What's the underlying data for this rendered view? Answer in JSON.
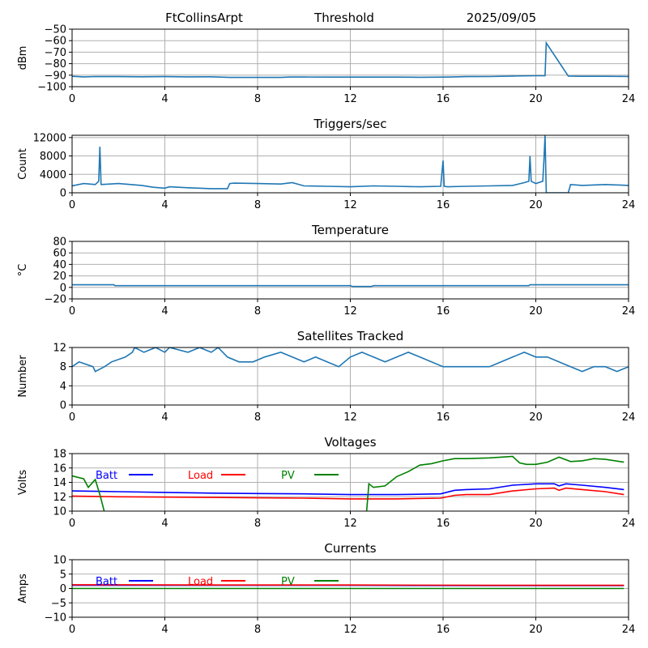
{
  "header": {
    "station": "FtCollinsArpt",
    "product": "Threshold",
    "date": "2025/09/05"
  },
  "colors": {
    "trace": "#1f77b4",
    "batt": "#0000ff",
    "load": "#ff0000",
    "pv": "#008000",
    "grid": "#b0b0b0"
  },
  "chart_data": [
    {
      "id": "threshold",
      "type": "line",
      "title": "",
      "ylabel": "dBm",
      "xlim": [
        0,
        24
      ],
      "xticks": [
        0,
        4,
        8,
        12,
        16,
        20,
        24
      ],
      "ylim": [
        -100,
        -50
      ],
      "yticks": [
        -100,
        -90,
        -80,
        -70,
        -60,
        -50
      ],
      "grid": true,
      "series": [
        {
          "color": "#1f77b4",
          "x": [
            0,
            0.5,
            1,
            2,
            3,
            4,
            5,
            6,
            6.8,
            7,
            8,
            9,
            9.4,
            10,
            11,
            12,
            13,
            14,
            15,
            16,
            16.5,
            17,
            18,
            19,
            20,
            20.4,
            20.45,
            21.4,
            22,
            23,
            24
          ],
          "y": [
            -91,
            -91.5,
            -91.2,
            -91.3,
            -91.4,
            -91.3,
            -91.5,
            -91.4,
            -92,
            -92,
            -92,
            -92,
            -91.6,
            -91.6,
            -91.7,
            -91.7,
            -91.7,
            -91.7,
            -91.8,
            -91.7,
            -91.5,
            -91.3,
            -91.2,
            -90.8,
            -90.5,
            -90.4,
            -62,
            -90.8,
            -91,
            -91,
            -91.2
          ]
        }
      ]
    },
    {
      "id": "triggers",
      "type": "line",
      "title": "Triggers/sec",
      "ylabel": "Count",
      "xlim": [
        0,
        24
      ],
      "xticks": [
        0,
        4,
        8,
        12,
        16,
        20,
        24
      ],
      "ylim": [
        0,
        12500
      ],
      "yticks": [
        0,
        4000,
        8000,
        12000
      ],
      "grid": true,
      "series": [
        {
          "color": "#1f77b4",
          "x": [
            0,
            0.5,
            1,
            1.15,
            1.2,
            1.25,
            2,
            3,
            3.5,
            4,
            4.2,
            5,
            6,
            6.7,
            6.8,
            7,
            8,
            9,
            9.5,
            10,
            11,
            12,
            13,
            14,
            15,
            15.9,
            16,
            16.05,
            16.2,
            17,
            18,
            19,
            19.5,
            19.7,
            19.75,
            19.8,
            20,
            20.3,
            20.35,
            20.4,
            20.45,
            21,
            21.4,
            21.5,
            22,
            23,
            24
          ],
          "y": [
            1500,
            2000,
            1800,
            2500,
            10000,
            1800,
            2000,
            1600,
            1200,
            1000,
            1300,
            1100,
            900,
            900,
            2000,
            2100,
            2000,
            1900,
            2200,
            1500,
            1400,
            1300,
            1500,
            1400,
            1300,
            1400,
            7000,
            1400,
            1300,
            1400,
            1500,
            1600,
            2200,
            2500,
            8000,
            2500,
            2000,
            2500,
            7000,
            12500,
            0,
            0,
            0,
            1800,
            1600,
            1800,
            1600
          ]
        }
      ]
    },
    {
      "id": "temperature",
      "type": "line",
      "title": "Temperature",
      "ylabel": "°C",
      "xlim": [
        0,
        24
      ],
      "xticks": [
        0,
        4,
        8,
        12,
        16,
        20,
        24
      ],
      "ylim": [
        -20,
        80
      ],
      "yticks": [
        -20,
        0,
        20,
        40,
        60,
        80
      ],
      "grid": true,
      "series": [
        {
          "color": "#1f77b4",
          "x": [
            0,
            1.8,
            1.85,
            12,
            12.1,
            12.9,
            13,
            19.7,
            19.75,
            24
          ],
          "y": [
            4.5,
            4.5,
            3,
            3,
            1.5,
            1.5,
            3,
            3,
            4.5,
            4.5
          ]
        }
      ]
    },
    {
      "id": "satellites",
      "type": "line",
      "title": "Satellites Tracked",
      "ylabel": "Number",
      "xlim": [
        0,
        24
      ],
      "xticks": [
        0,
        4,
        8,
        12,
        16,
        20,
        24
      ],
      "ylim": [
        0,
        12
      ],
      "yticks": [
        0,
        4,
        8,
        12
      ],
      "grid": true,
      "series": [
        {
          "color": "#1f77b4",
          "x": [
            0,
            0.3,
            0.9,
            1,
            1.4,
            1.7,
            2.3,
            2.6,
            2.7,
            3.1,
            3.6,
            4,
            4.2,
            5,
            5.5,
            6,
            6.3,
            6.7,
            7.2,
            7.8,
            8.3,
            9,
            9.5,
            10,
            10.5,
            11,
            11.5,
            12,
            12.5,
            13,
            13.5,
            14,
            14.5,
            15,
            15.5,
            16,
            17,
            18,
            18.5,
            19,
            19.5,
            20,
            20.5,
            21,
            21.5,
            22,
            22.5,
            23,
            23.5,
            24
          ],
          "y": [
            8,
            9,
            8,
            7,
            8,
            9,
            10,
            11,
            12,
            11,
            12,
            11,
            12,
            11,
            12,
            11,
            12,
            10,
            9,
            9,
            10,
            11,
            10,
            9,
            10,
            9,
            8,
            10,
            11,
            10,
            9,
            10,
            11,
            10,
            9,
            8,
            8,
            8,
            9,
            10,
            11,
            10,
            10,
            9,
            8,
            7,
            8,
            8,
            7,
            8
          ]
        }
      ]
    },
    {
      "id": "voltages",
      "type": "line",
      "title": "Voltages",
      "ylabel": "Volts",
      "xlim": [
        0,
        24
      ],
      "xticks": [
        0,
        4,
        8,
        12,
        16,
        20,
        24
      ],
      "ylim": [
        10,
        18
      ],
      "yticks": [
        10,
        12,
        14,
        16,
        18
      ],
      "grid": true,
      "legend": [
        "Batt",
        "Load",
        "PV"
      ],
      "legend_placement": "top-left",
      "series": [
        {
          "name": "Batt",
          "color": "#0000ff",
          "x": [
            0,
            2,
            4,
            6,
            8,
            10,
            12,
            14,
            15.9,
            16.5,
            17,
            18,
            19,
            20,
            20.8,
            21,
            21.3,
            22,
            23,
            23.8
          ],
          "y": [
            12.8,
            12.7,
            12.6,
            12.5,
            12.45,
            12.4,
            12.3,
            12.3,
            12.4,
            12.9,
            13,
            13.1,
            13.6,
            13.8,
            13.8,
            13.5,
            13.8,
            13.6,
            13.3,
            13.0
          ]
        },
        {
          "name": "Load",
          "color": "#ff0000",
          "x": [
            0,
            2,
            4,
            6,
            8,
            10,
            12,
            14,
            15.9,
            16.5,
            17,
            18,
            19,
            20,
            20.8,
            21,
            21.3,
            22,
            23,
            23.8
          ],
          "y": [
            12.1,
            12.0,
            11.95,
            11.9,
            11.85,
            11.8,
            11.7,
            11.7,
            11.8,
            12.2,
            12.3,
            12.3,
            12.8,
            13.1,
            13.2,
            12.9,
            13.2,
            13.0,
            12.7,
            12.3
          ]
        },
        {
          "name": "PV",
          "color": "#008000",
          "x": [
            0,
            0.5,
            0.7,
            1,
            1.2,
            1.4,
            12.7,
            12.8,
            13,
            13.5,
            14,
            14.5,
            15,
            15.5,
            16,
            16.5,
            17,
            18,
            19,
            19.3,
            19.6,
            20,
            20.5,
            21,
            21.5,
            22,
            22.5,
            23,
            23.8
          ],
          "y": [
            14.9,
            14.5,
            13.3,
            14.4,
            12.3,
            9.8,
            9.8,
            13.8,
            13.3,
            13.5,
            14.8,
            15.5,
            16.4,
            16.6,
            17.0,
            17.3,
            17.3,
            17.4,
            17.6,
            16.7,
            16.5,
            16.5,
            16.8,
            17.5,
            16.9,
            17.0,
            17.3,
            17.2,
            16.8
          ]
        }
      ]
    },
    {
      "id": "currents",
      "type": "line",
      "title": "Currents",
      "ylabel": "Amps",
      "xlim": [
        0,
        24
      ],
      "xticks": [
        0,
        4,
        8,
        12,
        16,
        20,
        24
      ],
      "ylim": [
        -10,
        10
      ],
      "yticks": [
        -10,
        -5,
        0,
        5,
        10
      ],
      "grid": true,
      "legend": [
        "Batt",
        "Load",
        "PV"
      ],
      "legend_placement": "top-left",
      "series": [
        {
          "name": "Batt",
          "color": "#0000ff",
          "x": [
            0,
            6,
            12,
            18,
            23.8
          ],
          "y": [
            1.1,
            1.1,
            1.1,
            1.0,
            1.0
          ]
        },
        {
          "name": "Load",
          "color": "#ff0000",
          "x": [
            0,
            2,
            6,
            12,
            18,
            23.8
          ],
          "y": [
            1.3,
            1.3,
            1.2,
            1.2,
            1.1,
            1.1
          ]
        },
        {
          "name": "PV",
          "color": "#008000",
          "x": [
            0,
            23.8
          ],
          "y": [
            0,
            0
          ]
        }
      ]
    }
  ]
}
